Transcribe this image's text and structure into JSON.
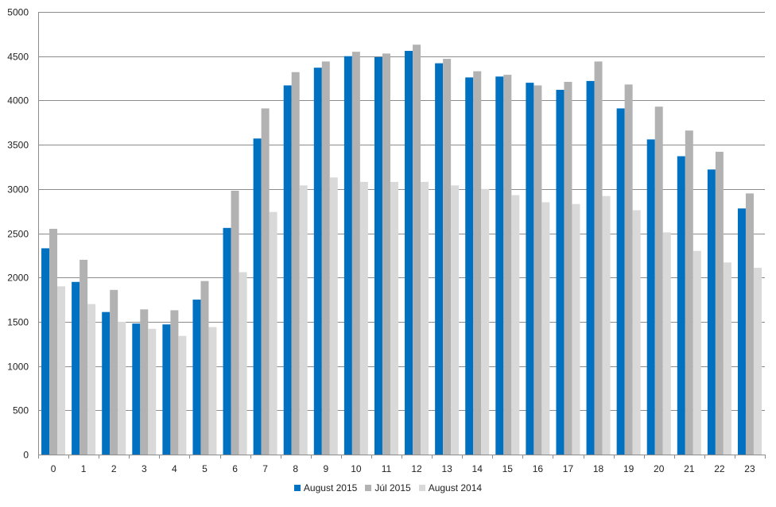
{
  "chart_data": {
    "type": "bar",
    "title": "",
    "xlabel": "",
    "ylabel": "",
    "ylim": [
      0,
      5000
    ],
    "ytick_step": 500,
    "grid": true,
    "legend_position": "bottom",
    "categories": [
      "0",
      "1",
      "2",
      "3",
      "4",
      "5",
      "6",
      "7",
      "8",
      "9",
      "10",
      "11",
      "12",
      "13",
      "14",
      "15",
      "16",
      "17",
      "18",
      "19",
      "20",
      "21",
      "22",
      "23"
    ],
    "series": [
      {
        "name": "August 2015",
        "color": "#0070c0",
        "values": [
          2330,
          1950,
          1610,
          1480,
          1470,
          1750,
          2560,
          3570,
          4170,
          4370,
          4500,
          4490,
          4560,
          4420,
          4260,
          4270,
          4200,
          4120,
          4220,
          3910,
          3560,
          3370,
          3220,
          2780
        ]
      },
      {
        "name": "Júl 2015",
        "color": "#b2b2b2",
        "values": [
          2550,
          2200,
          1860,
          1640,
          1630,
          1960,
          2980,
          3910,
          4320,
          4440,
          4550,
          4530,
          4630,
          4470,
          4330,
          4290,
          4170,
          4210,
          4440,
          4180,
          3930,
          3660,
          3420,
          2950
        ]
      },
      {
        "name": "August 2014",
        "color": "#d9d9d9",
        "values": [
          1900,
          1700,
          1500,
          1420,
          1340,
          1440,
          2060,
          2740,
          3040,
          3130,
          3080,
          3080,
          3080,
          3040,
          3000,
          2930,
          2850,
          2830,
          2920,
          2760,
          2510,
          2300,
          2170,
          2110
        ]
      }
    ]
  }
}
